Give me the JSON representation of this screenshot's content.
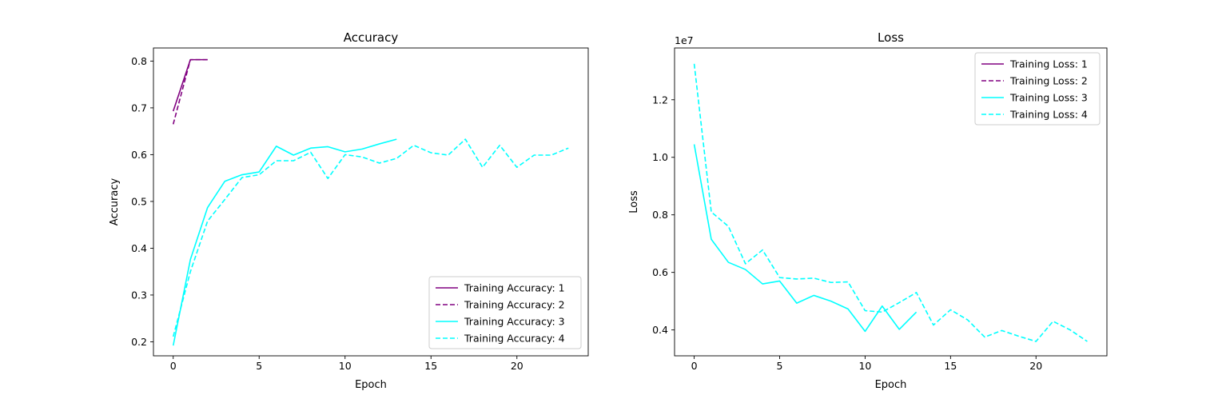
{
  "chart_data": [
    {
      "type": "line",
      "title": "Accuracy",
      "xlabel": "Epoch",
      "ylabel": "Accuracy",
      "xlim": [
        -1.15,
        24.15
      ],
      "ylim": [
        0.17,
        0.828
      ],
      "xticks": [
        0,
        5,
        10,
        15,
        20
      ],
      "yticks": [
        0.2,
        0.3,
        0.4,
        0.5,
        0.6,
        0.7,
        0.8
      ],
      "ytick_labels": [
        "0.2",
        "0.3",
        "0.4",
        "0.5",
        "0.6",
        "0.7",
        "0.8"
      ],
      "grid": false,
      "legend_position": "lower-right",
      "series": [
        {
          "name": "Training Accuracy: 1",
          "color": "#800080",
          "dashed": false,
          "x": [
            0,
            1,
            2
          ],
          "y": [
            0.693,
            0.803,
            0.803
          ]
        },
        {
          "name": "Training Accuracy: 2",
          "color": "#800080",
          "dashed": true,
          "x": [
            0,
            1,
            2
          ],
          "y": [
            0.665,
            0.803,
            0.803
          ]
        },
        {
          "name": "Training Accuracy: 3",
          "color": "#00ffff",
          "dashed": false,
          "x": [
            0,
            1,
            2,
            3,
            4,
            5,
            6,
            7,
            8,
            9,
            10,
            11,
            12,
            13
          ],
          "y": [
            0.192,
            0.376,
            0.487,
            0.543,
            0.557,
            0.563,
            0.618,
            0.599,
            0.614,
            0.617,
            0.606,
            0.612,
            0.623,
            0.633
          ]
        },
        {
          "name": "Training Accuracy: 4",
          "color": "#00ffff",
          "dashed": true,
          "x": [
            0,
            1,
            2,
            3,
            4,
            5,
            6,
            7,
            8,
            9,
            10,
            11,
            12,
            13,
            14,
            15,
            16,
            17,
            18,
            19,
            20,
            21,
            22,
            23
          ],
          "y": [
            0.211,
            0.35,
            0.458,
            0.504,
            0.551,
            0.557,
            0.587,
            0.587,
            0.605,
            0.549,
            0.6,
            0.595,
            0.582,
            0.592,
            0.62,
            0.604,
            0.599,
            0.633,
            0.573,
            0.62,
            0.573,
            0.599,
            0.599,
            0.614
          ]
        }
      ]
    },
    {
      "type": "line",
      "title": "Loss",
      "xlabel": "Epoch",
      "ylabel": "Loss",
      "offset_text": "1e7",
      "xlim": [
        -1.15,
        24.15
      ],
      "ylim": [
        3.1,
        13.8
      ],
      "xticks": [
        0,
        5,
        10,
        15,
        20
      ],
      "yticks": [
        4,
        6,
        8,
        10,
        12
      ],
      "ytick_labels": [
        "0.4",
        "0.6",
        "0.8",
        "1.0",
        "1.2"
      ],
      "grid": false,
      "legend_position": "upper-right",
      "series": [
        {
          "name": "Training Loss: 1",
          "color": "#800080",
          "dashed": false,
          "x": [],
          "y": []
        },
        {
          "name": "Training Loss: 2",
          "color": "#800080",
          "dashed": true,
          "x": [],
          "y": []
        },
        {
          "name": "Training Loss: 3",
          "color": "#00ffff",
          "dashed": false,
          "x": [
            0,
            1,
            2,
            3,
            4,
            5,
            6,
            7,
            8,
            9,
            10,
            11,
            12,
            13
          ],
          "y": [
            10.45,
            7.15,
            6.35,
            6.1,
            5.6,
            5.7,
            4.93,
            5.2,
            5.0,
            4.73,
            3.95,
            4.83,
            4.02,
            4.62
          ]
        },
        {
          "name": "Training Loss: 4",
          "color": "#00ffff",
          "dashed": true,
          "x": [
            0,
            1,
            2,
            3,
            4,
            5,
            6,
            7,
            8,
            9,
            10,
            11,
            12,
            13,
            14,
            15,
            16,
            17,
            18,
            19,
            20,
            21,
            22,
            23
          ],
          "y": [
            13.25,
            8.1,
            7.6,
            6.3,
            6.78,
            5.82,
            5.77,
            5.8,
            5.65,
            5.67,
            4.67,
            4.62,
            4.95,
            5.3,
            4.17,
            4.7,
            4.35,
            3.75,
            3.98,
            3.78,
            3.6,
            4.3,
            4.0,
            3.6
          ]
        }
      ]
    }
  ]
}
